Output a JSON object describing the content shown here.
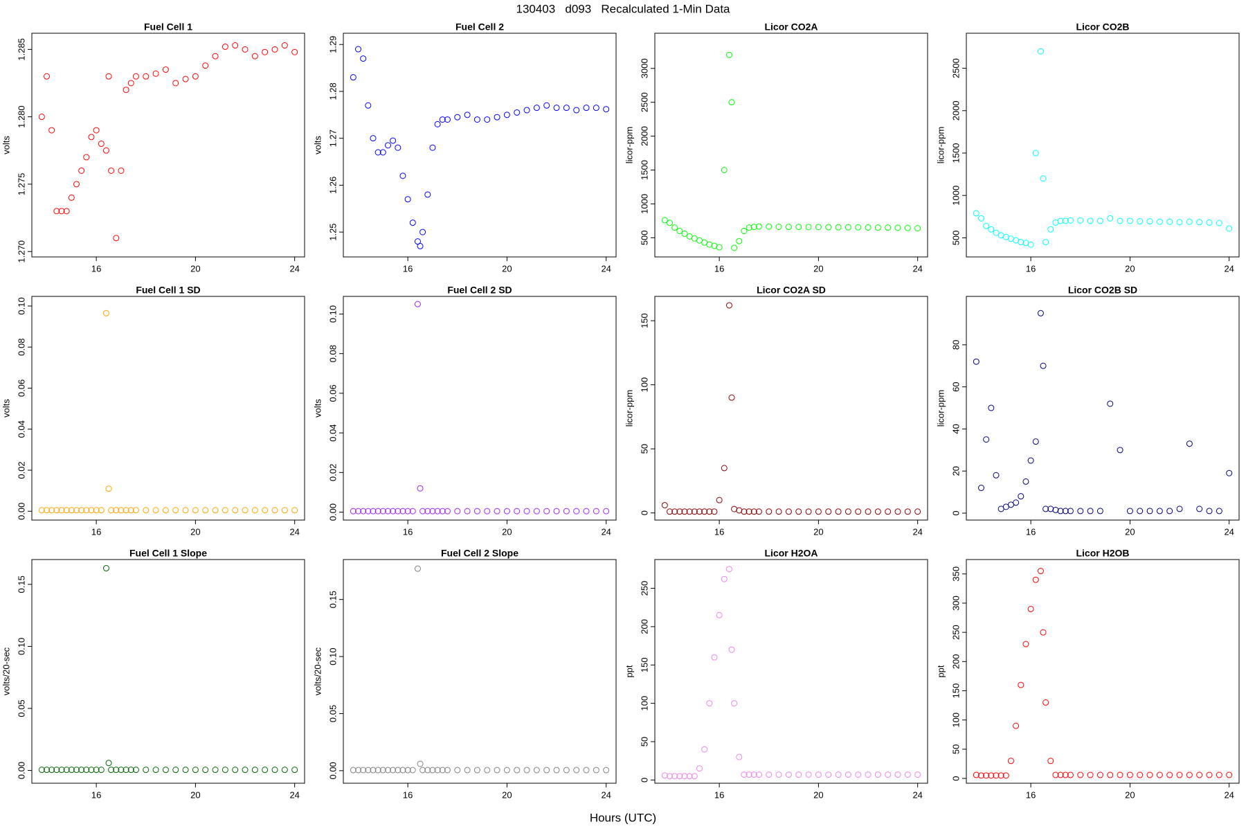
{
  "title": "130403   d093   Recalculated 1-Min Data",
  "x_label": "Hours (UTC)",
  "chart_data": [
    {
      "type": "scatter",
      "title": "Fuel Cell 1",
      "y_label": "volts",
      "color": "#ff0000",
      "x": [
        13.8,
        14.0,
        14.2,
        14.4,
        14.6,
        14.8,
        15.0,
        15.2,
        15.4,
        15.6,
        15.8,
        16.0,
        16.2,
        16.4,
        16.5,
        16.6,
        16.8,
        17.0,
        17.2,
        17.4,
        17.6,
        18.0,
        18.4,
        18.8,
        19.2,
        19.6,
        20.0,
        20.4,
        20.8,
        21.2,
        21.6,
        22.0,
        22.4,
        22.8,
        23.2,
        23.6,
        24.0
      ],
      "values": [
        1.28,
        1.283,
        1.279,
        1.273,
        1.273,
        1.273,
        1.274,
        1.275,
        1.276,
        1.277,
        1.2785,
        1.279,
        1.278,
        1.2775,
        1.283,
        1.276,
        1.271,
        1.276,
        1.282,
        1.2825,
        1.283,
        1.283,
        1.2832,
        1.2835,
        1.2825,
        1.2828,
        1.283,
        1.2838,
        1.2845,
        1.2852,
        1.2853,
        1.285,
        1.2845,
        1.2848,
        1.285,
        1.2853,
        1.2848
      ],
      "xlim": [
        13.4,
        24.4
      ],
      "xticks": [
        16,
        20,
        24
      ],
      "ylim": [
        1.2696,
        1.2862
      ],
      "yticks": [
        {
          "value": 1.27,
          "label": "1.270"
        },
        1.275,
        {
          "value": 1.28,
          "label": "1.280"
        },
        1.285
      ]
    },
    {
      "type": "scatter",
      "title": "Fuel Cell 2",
      "y_label": "volts",
      "color": "#0000ff",
      "x": [
        13.8,
        14.0,
        14.2,
        14.4,
        14.6,
        14.8,
        15.0,
        15.2,
        15.4,
        15.6,
        15.8,
        16.0,
        16.2,
        16.4,
        16.5,
        16.6,
        16.8,
        17.0,
        17.2,
        17.4,
        17.6,
        18.0,
        18.4,
        18.8,
        19.2,
        19.6,
        20.0,
        20.4,
        20.8,
        21.2,
        21.6,
        22.0,
        22.4,
        22.8,
        23.2,
        23.6,
        24.0
      ],
      "values": [
        1.283,
        1.289,
        1.287,
        1.277,
        1.27,
        1.267,
        1.267,
        1.2685,
        1.2695,
        1.268,
        1.262,
        1.257,
        1.252,
        1.248,
        1.247,
        1.25,
        1.258,
        1.268,
        1.273,
        1.274,
        1.274,
        1.2745,
        1.275,
        1.274,
        1.274,
        1.2745,
        1.275,
        1.2755,
        1.276,
        1.2765,
        1.277,
        1.2765,
        1.2765,
        1.276,
        1.2765,
        1.2765,
        1.2762
      ],
      "xlim": [
        13.4,
        24.4
      ],
      "xticks": [
        16,
        20,
        24
      ],
      "ylim": [
        1.2447,
        1.2924
      ],
      "yticks": [
        1.25,
        1.26,
        1.27,
        1.28,
        1.29
      ]
    },
    {
      "type": "scatter",
      "title": "Licor CO2A",
      "y_label": "licor-ppm",
      "color": "#00ff00",
      "x": [
        13.8,
        14.0,
        14.2,
        14.4,
        14.6,
        14.8,
        15.0,
        15.2,
        15.4,
        15.6,
        15.8,
        16.0,
        16.2,
        16.4,
        16.5,
        16.6,
        16.8,
        17.0,
        17.2,
        17.4,
        17.6,
        18.0,
        18.4,
        18.8,
        19.2,
        19.6,
        20.0,
        20.4,
        20.8,
        21.2,
        21.6,
        22.0,
        22.4,
        22.8,
        23.2,
        23.6,
        24.0
      ],
      "values": [
        760,
        720,
        650,
        600,
        560,
        520,
        490,
        460,
        430,
        400,
        380,
        360,
        1500,
        3200,
        2500,
        350,
        450,
        600,
        650,
        660,
        665,
        665,
        662,
        660,
        660,
        658,
        658,
        656,
        655,
        655,
        654,
        652,
        650,
        650,
        648,
        645,
        640
      ],
      "xlim": [
        13.4,
        24.4
      ],
      "xticks": [
        16,
        20,
        24
      ],
      "ylim": [
        217,
        3519
      ],
      "yticks": [
        500,
        1000,
        1500,
        2000,
        2500,
        3000
      ]
    },
    {
      "type": "scatter",
      "title": "Licor CO2B",
      "y_label": "licor-ppm",
      "color": "#00ffff",
      "x": [
        13.8,
        14.0,
        14.2,
        14.4,
        14.6,
        14.8,
        15.0,
        15.2,
        15.4,
        15.6,
        15.8,
        16.0,
        16.2,
        16.4,
        16.5,
        16.6,
        16.8,
        17.0,
        17.2,
        17.4,
        17.6,
        18.0,
        18.4,
        18.8,
        19.2,
        19.6,
        20.0,
        20.4,
        20.8,
        21.2,
        21.6,
        22.0,
        22.4,
        22.8,
        23.2,
        23.6,
        24.0
      ],
      "values": [
        790,
        730,
        640,
        600,
        560,
        530,
        510,
        490,
        470,
        450,
        440,
        420,
        1500,
        2700,
        1200,
        450,
        600,
        680,
        700,
        700,
        705,
        705,
        700,
        700,
        730,
        700,
        700,
        695,
        695,
        690,
        690,
        685,
        690,
        685,
        680,
        675,
        610
      ],
      "xlim": [
        13.4,
        24.4
      ],
      "xticks": [
        16,
        20,
        24
      ],
      "ylim": [
        275,
        2913
      ],
      "yticks": [
        500,
        1000,
        1500,
        2000,
        2500
      ]
    },
    {
      "type": "scatter",
      "title": "Fuel Cell 1 SD",
      "y_label": "volts",
      "color": "#ffa500",
      "x": [
        13.8,
        14.0,
        14.2,
        14.4,
        14.6,
        14.8,
        15.0,
        15.2,
        15.4,
        15.6,
        15.8,
        16.0,
        16.2,
        16.4,
        16.5,
        16.6,
        16.8,
        17.0,
        17.2,
        17.4,
        17.6,
        18.0,
        18.4,
        18.8,
        19.2,
        19.6,
        20.0,
        20.4,
        20.8,
        21.2,
        21.6,
        22.0,
        22.4,
        22.8,
        23.2,
        23.6,
        24.0
      ],
      "values": [
        0.0005,
        0.0005,
        0.0005,
        0.0005,
        0.0005,
        0.0005,
        0.0005,
        0.0005,
        0.0005,
        0.0005,
        0.0005,
        0.0005,
        0.0005,
        0.0965,
        0.011,
        0.0005,
        0.0005,
        0.0005,
        0.0005,
        0.0005,
        0.0005,
        0.0005,
        0.0005,
        0.0005,
        0.0005,
        0.0005,
        0.0005,
        0.0005,
        0.0005,
        0.0005,
        0.0005,
        0.0005,
        0.0005,
        0.0005,
        0.0005,
        0.0005,
        0.0005
      ],
      "xlim": [
        13.4,
        24.4
      ],
      "xticks": [
        16,
        20,
        24
      ],
      "ylim": [
        -0.0043,
        0.1047
      ],
      "yticks": [
        {
          "value": 0,
          "label": "0.00"
        },
        0.02,
        0.04,
        0.06,
        0.08,
        {
          "value": 0.1,
          "label": "0.10"
        }
      ]
    },
    {
      "type": "scatter",
      "title": "Fuel Cell 2 SD",
      "y_label": "volts",
      "color": "#a020f0",
      "x": [
        13.8,
        14.0,
        14.2,
        14.4,
        14.6,
        14.8,
        15.0,
        15.2,
        15.4,
        15.6,
        15.8,
        16.0,
        16.2,
        16.4,
        16.5,
        16.6,
        16.8,
        17.0,
        17.2,
        17.4,
        17.6,
        18.0,
        18.4,
        18.8,
        19.2,
        19.6,
        20.0,
        20.4,
        20.8,
        21.2,
        21.6,
        22.0,
        22.4,
        22.8,
        23.2,
        23.6,
        24.0
      ],
      "values": [
        0.0005,
        0.0005,
        0.0005,
        0.0005,
        0.0005,
        0.0005,
        0.0005,
        0.0005,
        0.0005,
        0.0005,
        0.0005,
        0.0005,
        0.0005,
        0.105,
        0.012,
        0.0005,
        0.0005,
        0.0005,
        0.0005,
        0.0005,
        0.0005,
        0.0005,
        0.0005,
        0.0005,
        0.0005,
        0.0005,
        0.0005,
        0.0005,
        0.0005,
        0.0005,
        0.0005,
        0.0005,
        0.0005,
        0.0005,
        0.0005,
        0.0005,
        0.0005
      ],
      "xlim": [
        13.4,
        24.4
      ],
      "xticks": [
        16,
        20,
        24
      ],
      "ylim": [
        -0.004,
        0.1089
      ],
      "yticks": [
        {
          "value": 0,
          "label": "0.00"
        },
        0.02,
        0.04,
        0.06,
        0.08,
        {
          "value": 0.1,
          "label": "0.10"
        }
      ]
    },
    {
      "type": "scatter",
      "title": "Licor CO2A SD",
      "y_label": "licor-ppm",
      "color": "#8b0000",
      "x": [
        13.8,
        14.0,
        14.2,
        14.4,
        14.6,
        14.8,
        15.0,
        15.2,
        15.4,
        15.6,
        15.8,
        16.0,
        16.2,
        16.4,
        16.5,
        16.6,
        16.8,
        17.0,
        17.2,
        17.4,
        17.6,
        18.0,
        18.4,
        18.8,
        19.2,
        19.6,
        20.0,
        20.4,
        20.8,
        21.2,
        21.6,
        22.0,
        22.4,
        22.8,
        23.2,
        23.6,
        24.0
      ],
      "values": [
        6,
        1,
        1,
        1,
        1,
        1,
        1,
        1,
        1,
        1,
        1,
        10,
        35,
        162,
        90,
        3,
        2,
        1,
        1,
        1,
        1,
        1,
        1,
        1,
        1,
        1,
        1,
        1,
        1,
        1,
        1,
        1,
        1,
        1,
        1,
        1,
        1
      ],
      "xlim": [
        13.4,
        24.4
      ],
      "xticks": [
        16,
        20,
        24
      ],
      "ylim": [
        -5.6,
        169
      ],
      "yticks": [
        0,
        50,
        100,
        150
      ]
    },
    {
      "type": "scatter",
      "title": "Licor CO2B SD",
      "y_label": "licor-ppm",
      "color": "#000080",
      "x": [
        13.8,
        14.0,
        14.2,
        14.4,
        14.6,
        14.8,
        15.0,
        15.2,
        15.4,
        15.6,
        15.8,
        16.0,
        16.2,
        16.4,
        16.5,
        16.6,
        16.8,
        17.0,
        17.2,
        17.4,
        17.6,
        18.0,
        18.4,
        18.8,
        19.2,
        19.6,
        20.0,
        20.4,
        20.8,
        21.2,
        21.6,
        22.0,
        22.4,
        22.8,
        23.2,
        23.6,
        24.0
      ],
      "values": [
        72,
        12,
        35,
        50,
        18,
        2,
        3,
        4,
        5,
        8,
        15,
        25,
        34,
        95,
        70,
        2,
        2,
        1.5,
        1,
        1,
        1,
        1,
        1,
        1,
        52,
        30,
        1,
        1,
        1,
        1,
        1,
        2,
        33,
        2,
        1,
        1,
        19
      ],
      "xlim": [
        13.4,
        24.4
      ],
      "xticks": [
        16,
        20,
        24
      ],
      "ylim": [
        -3.3,
        103
      ],
      "yticks": [
        0,
        20,
        40,
        60,
        80
      ]
    },
    {
      "type": "scatter",
      "title": "Fuel Cell 1 Slope",
      "y_label": "volts/20-sec",
      "color": "#006400",
      "x": [
        13.8,
        14.0,
        14.2,
        14.4,
        14.6,
        14.8,
        15.0,
        15.2,
        15.4,
        15.6,
        15.8,
        16.0,
        16.2,
        16.4,
        16.5,
        16.6,
        16.8,
        17.0,
        17.2,
        17.4,
        17.6,
        18.0,
        18.4,
        18.8,
        19.2,
        19.6,
        20.0,
        20.4,
        20.8,
        21.2,
        21.6,
        22.0,
        22.4,
        22.8,
        23.2,
        23.6,
        24.0
      ],
      "values": [
        0.0005,
        0.0005,
        0.0005,
        0.0005,
        0.0005,
        0.0005,
        0.0005,
        0.0005,
        0.0005,
        0.0005,
        0.0005,
        0.0005,
        0.0005,
        0.163,
        0.006,
        0.0005,
        0.0005,
        0.0005,
        0.0005,
        0.0005,
        0.0005,
        0.0005,
        0.0005,
        0.0005,
        0.0005,
        0.0005,
        0.0005,
        0.0005,
        0.0005,
        0.0005,
        0.0005,
        0.0005,
        0.0005,
        0.0005,
        0.0005,
        0.0005,
        0.0005
      ],
      "xlim": [
        13.4,
        24.4
      ],
      "xticks": [
        16,
        20,
        24
      ],
      "ylim": [
        -0.0103,
        0.17
      ],
      "yticks": [
        {
          "value": 0,
          "label": "0.00"
        },
        0.05,
        {
          "value": 0.1,
          "label": "0.10"
        },
        0.15
      ]
    },
    {
      "type": "scatter",
      "title": "Fuel Cell 2 Slope",
      "y_label": "volts/20-sec",
      "color": "#808080",
      "x": [
        13.8,
        14.0,
        14.2,
        14.4,
        14.6,
        14.8,
        15.0,
        15.2,
        15.4,
        15.6,
        15.8,
        16.0,
        16.2,
        16.4,
        16.5,
        16.6,
        16.8,
        17.0,
        17.2,
        17.4,
        17.6,
        18.0,
        18.4,
        18.8,
        19.2,
        19.6,
        20.0,
        20.4,
        20.8,
        21.2,
        21.6,
        22.0,
        22.4,
        22.8,
        23.2,
        23.6,
        24.0
      ],
      "values": [
        0.0005,
        0.0005,
        0.0005,
        0.0005,
        0.0005,
        0.0005,
        0.0005,
        0.0005,
        0.0005,
        0.0005,
        0.0005,
        0.0005,
        0.0005,
        0.177,
        0.006,
        0.0005,
        0.0005,
        0.0005,
        0.0005,
        0.0005,
        0.0005,
        0.0005,
        0.0005,
        0.0005,
        0.0005,
        0.0005,
        0.0005,
        0.0005,
        0.0005,
        0.0005,
        0.0005,
        0.0005,
        0.0005,
        0.0005,
        0.0005,
        0.0005,
        0.0005
      ],
      "xlim": [
        13.4,
        24.4
      ],
      "xticks": [
        16,
        20,
        24
      ],
      "ylim": [
        -0.011,
        0.185
      ],
      "yticks": [
        {
          "value": 0,
          "label": "0.00"
        },
        0.05,
        {
          "value": 0.1,
          "label": "0.10"
        },
        0.15
      ]
    },
    {
      "type": "scatter",
      "title": "Licor H2OA",
      "y_label": "ppt",
      "color": "#ee82ee",
      "x": [
        13.8,
        14.0,
        14.2,
        14.4,
        14.6,
        14.8,
        15.0,
        15.2,
        15.4,
        15.6,
        15.8,
        16.0,
        16.2,
        16.4,
        16.5,
        16.6,
        16.8,
        17.0,
        17.2,
        17.4,
        17.6,
        18.0,
        18.4,
        18.8,
        19.2,
        19.6,
        20.0,
        20.4,
        20.8,
        21.2,
        21.6,
        22.0,
        22.4,
        22.8,
        23.2,
        23.6,
        24.0
      ],
      "values": [
        6,
        5,
        5,
        5,
        5,
        5,
        5,
        15,
        40,
        100,
        160,
        215,
        262,
        275,
        170,
        100,
        30,
        7,
        7,
        7,
        7,
        7,
        7,
        7,
        7,
        7,
        7,
        7,
        7,
        7,
        7,
        7,
        7,
        7,
        7,
        7,
        7
      ],
      "xlim": [
        13.4,
        24.4
      ],
      "xticks": [
        16,
        20,
        24
      ],
      "ylim": [
        -4.2,
        287.5
      ],
      "yticks": [
        0,
        50,
        100,
        150,
        200,
        250
      ]
    },
    {
      "type": "scatter",
      "title": "Licor H2OB",
      "y_label": "ppt",
      "color": "#ff0000",
      "x": [
        13.8,
        14.0,
        14.2,
        14.4,
        14.6,
        14.8,
        15.0,
        15.2,
        15.4,
        15.6,
        15.8,
        16.0,
        16.2,
        16.4,
        16.5,
        16.6,
        16.8,
        17.0,
        17.2,
        17.4,
        17.6,
        18.0,
        18.4,
        18.8,
        19.2,
        19.6,
        20.0,
        20.4,
        20.8,
        21.2,
        21.6,
        22.0,
        22.4,
        22.8,
        23.2,
        23.6,
        24.0
      ],
      "values": [
        6,
        5,
        5,
        5,
        5,
        5,
        5,
        30,
        90,
        160,
        230,
        290,
        340,
        355,
        250,
        130,
        30,
        6,
        6,
        6,
        6,
        6,
        6,
        6,
        6,
        6,
        6,
        6,
        6,
        6,
        6,
        6,
        6,
        6,
        6,
        6,
        6
      ],
      "xlim": [
        13.4,
        24.4
      ],
      "xticks": [
        16,
        20,
        24
      ],
      "ylim": [
        -8.2,
        374.6
      ],
      "yticks": [
        0,
        50,
        100,
        150,
        200,
        250,
        300,
        350
      ]
    }
  ]
}
